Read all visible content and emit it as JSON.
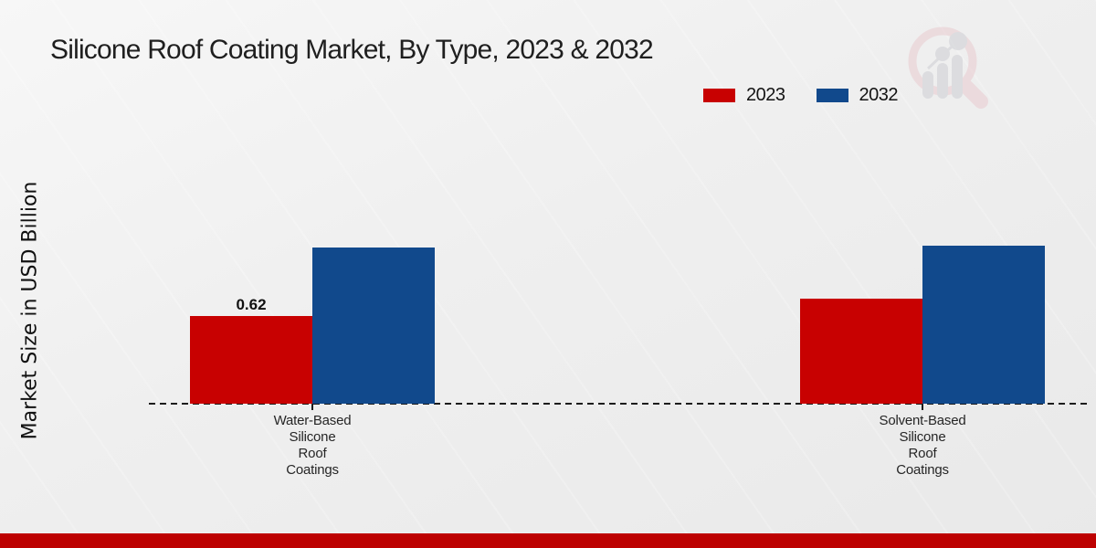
{
  "header": {
    "title": "Silicone Roof Coating Market, By Type, 2023 & 2032"
  },
  "legend": {
    "items": [
      {
        "label": "2023",
        "color": "#c80101"
      },
      {
        "label": "2032",
        "color": "#11498c"
      }
    ]
  },
  "chart_data": {
    "type": "bar",
    "title": "Silicone Roof Coating Market, By Type, 2023 & 2032",
    "xlabel": "",
    "ylabel": "Market Size in USD Billion",
    "categories": [
      "Water-Based Silicone Roof Coatings",
      "Solvent-Based Silicone Roof Coatings"
    ],
    "category_label_lines": [
      [
        "Water-Based",
        "Silicone",
        "Roof",
        "Coatings"
      ],
      [
        "Solvent-Based",
        "Silicone",
        "Roof",
        "Coatings"
      ]
    ],
    "series": [
      {
        "name": "2023",
        "color": "#c80101",
        "values": [
          0.62,
          0.74
        ]
      },
      {
        "name": "2032",
        "color": "#11498c",
        "values": [
          1.1,
          1.11
        ]
      }
    ],
    "data_labels": [
      {
        "series": "2023",
        "category_index": 0,
        "text": "0.62"
      }
    ],
    "ylim": [
      0,
      1.25
    ],
    "grid": false,
    "legend_position": "top-right",
    "baseline_style": "dashed"
  },
  "watermark": {
    "name": "market-research-chart-logo"
  },
  "footer": {
    "bar_color": "#bd0101"
  }
}
